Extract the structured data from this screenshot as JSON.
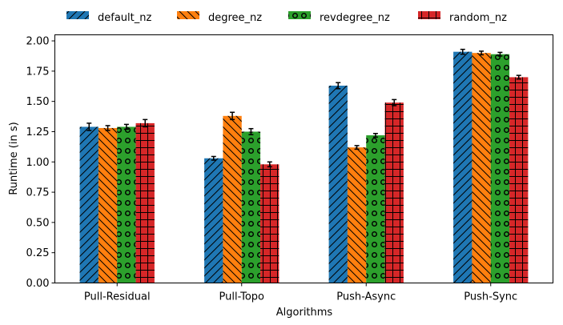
{
  "chart_data": {
    "type": "bar",
    "xlabel": "Algorithms",
    "ylabel": "Runtime (in s)",
    "ylim": [
      0,
      2.05
    ],
    "yticks": [
      "0.00",
      "0.25",
      "0.50",
      "0.75",
      "1.00",
      "1.25",
      "1.50",
      "1.75",
      "2.00"
    ],
    "categories": [
      "Pull-Residual",
      "Pull-Topo",
      "Push-Async",
      "Push-Sync"
    ],
    "legend_position": "top",
    "grid": false,
    "series": [
      {
        "name": "default_nz",
        "color": "#1f77b4",
        "hatch": "diagonal-forward",
        "values": [
          1.29,
          1.03,
          1.63,
          1.91
        ],
        "errors": [
          0.03,
          0.015,
          0.025,
          0.02
        ]
      },
      {
        "name": "degree_nz",
        "color": "#ff7f0e",
        "hatch": "diagonal-backward",
        "values": [
          1.28,
          1.38,
          1.12,
          1.9
        ],
        "errors": [
          0.02,
          0.03,
          0.015,
          0.015
        ]
      },
      {
        "name": "revdegree_nz",
        "color": "#2ca02c",
        "hatch": "circles",
        "values": [
          1.29,
          1.25,
          1.22,
          1.89
        ],
        "errors": [
          0.02,
          0.025,
          0.015,
          0.015
        ]
      },
      {
        "name": "random_nz",
        "color": "#d62728",
        "hatch": "grid",
        "values": [
          1.32,
          0.98,
          1.49,
          1.7
        ],
        "errors": [
          0.03,
          0.02,
          0.025,
          0.015
        ]
      }
    ]
  }
}
